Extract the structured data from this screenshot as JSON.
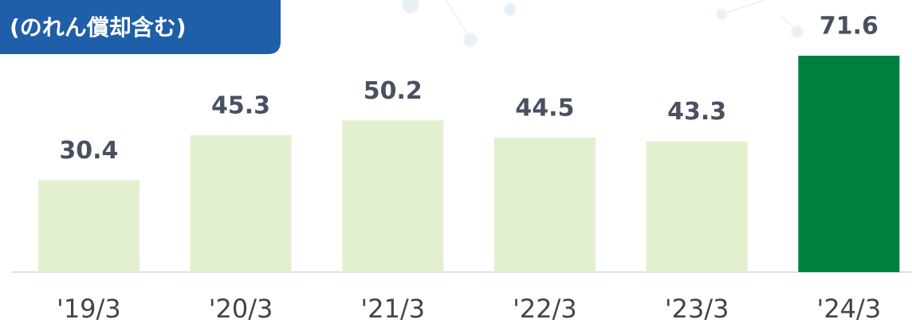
{
  "chart_data": {
    "type": "bar",
    "title": "(のれん償却含む)",
    "categories": [
      "'19/3",
      "'20/3",
      "'21/3",
      "'22/3",
      "'23/3",
      "'24/3"
    ],
    "values": [
      30.4,
      45.3,
      50.2,
      44.5,
      43.3,
      71.6
    ],
    "colors": [
      "#e2f0d0",
      "#e2f0d0",
      "#e2f0d0",
      "#e2f0d0",
      "#e2f0d0",
      "#00803f"
    ]
  }
}
